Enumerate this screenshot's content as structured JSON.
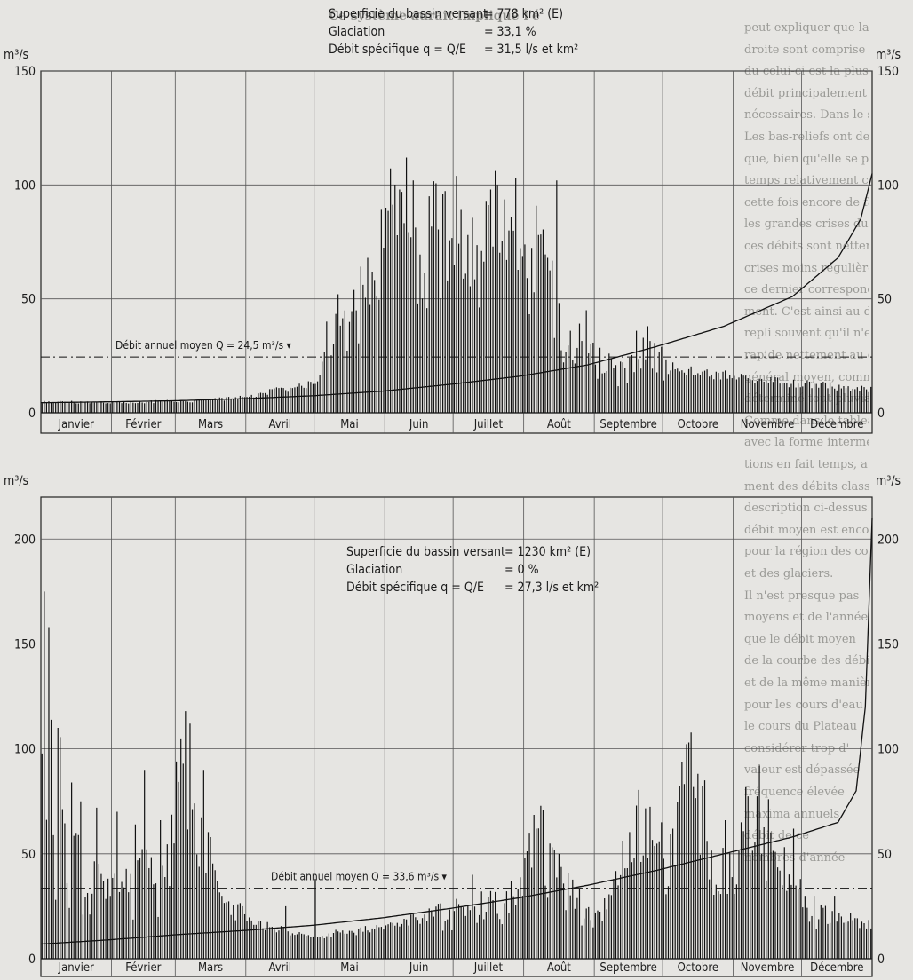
{
  "page": {
    "heading_fragment": "Ce système aurait impliqué l'é",
    "right_margin_lines": [
      "peut expliquer que la ba",
      "droite sont comprise entre l",
      "du celui-ci est la plus grand",
      "débit principalement d'été",
      "nécessaires. Dans le secteur du",
      "Les bas-reliefs ont des moyens",
      "que, bien qu'elle se produise",
      "temps relativement court. Ils",
      "cette fois encore de faire de",
      "les grandes crises du Plateau",
      "ces débits sont nettement plu",
      "crises moins régulièrement",
      "ce dernier correspond claire",
      "ment. C'est ainsi au débit",
      "repli souvent qu'il n'est pas",
      "rapide nettement au débit",
      "général moyen, comme l'indi",
      "déterminé tout pluvial.",
      "Comme dans le tableau",
      "avec la forme intermédiaire",
      "tions en fait temps, a",
      "ment des débits classés et",
      "description ci-dessus. La",
      "débit moyen est encore",
      "pour la région des cours",
      "et des glaciers.",
      "Il n'est presque pas",
      "moyens et de l'année du",
      "que le débit moyen",
      "de la courbe des débits",
      "et de la même manière",
      "pour les cours d'eau",
      "le cours du Plateau",
      "considérer trop d'",
      "valeur est dépassée",
      "fréquence élevée",
      "maxima annuels",
      "débit de ce",
      "nombres d'année"
    ]
  },
  "chart_data": [
    {
      "type": "bar",
      "id": "glacial-regime",
      "info": [
        {
          "label": "Superficie du bassin versant",
          "value": "= 778 km² (E)"
        },
        {
          "label": "Glaciation",
          "value": "= 33,1 %"
        },
        {
          "label": "Débit spécifique  q = Q/E",
          "value": "= 31,5 l/s et km²"
        }
      ],
      "unit": "m³/s",
      "ylim": [
        0,
        150
      ],
      "yticks": [
        0,
        50,
        100,
        150
      ],
      "y_left_ticks": [
        "0",
        "50",
        "100",
        "150"
      ],
      "y_right_ticks": [
        "0",
        "50",
        "100",
        "150"
      ],
      "months": [
        "Janvier",
        "Février",
        "Mars",
        "Avril",
        "Mai",
        "Juin",
        "Juillet",
        "Août",
        "Septembre",
        "Octobre",
        "Novembre",
        "Décembre"
      ],
      "mean_flow": 24.5,
      "mean_flow_label": "Débit annuel moyen  Q = 24,5 m³/s",
      "daily_envelope": [
        [
          1,
          4.5
        ],
        [
          20,
          4.6
        ],
        [
          40,
          4.7
        ],
        [
          60,
          5
        ],
        [
          75,
          5.5
        ],
        [
          91,
          7
        ],
        [
          100,
          9
        ],
        [
          110,
          11
        ],
        [
          121,
          13
        ],
        [
          126,
          25
        ],
        [
          131,
          38
        ],
        [
          136,
          42
        ],
        [
          141,
          55
        ],
        [
          146,
          70
        ],
        [
          151,
          85
        ],
        [
          156,
          90
        ],
        [
          160,
          112
        ],
        [
          165,
          80
        ],
        [
          171,
          82
        ],
        [
          176,
          85
        ],
        [
          182,
          88
        ],
        [
          188,
          75
        ],
        [
          194,
          78
        ],
        [
          200,
          85
        ],
        [
          206,
          72
        ],
        [
          212,
          60
        ],
        [
          218,
          73
        ],
        [
          224,
          58
        ],
        [
          230,
          40
        ],
        [
          235,
          32
        ],
        [
          240,
          38
        ],
        [
          244,
          24
        ],
        [
          252,
          20
        ],
        [
          258,
          22
        ],
        [
          262,
          25
        ],
        [
          268,
          32
        ],
        [
          274,
          22
        ],
        [
          285,
          18
        ],
        [
          300,
          17
        ],
        [
          315,
          15
        ],
        [
          330,
          13
        ],
        [
          345,
          12
        ],
        [
          365,
          10
        ]
      ],
      "daily_peaks": [
        [
          126,
          40
        ],
        [
          131,
          52
        ],
        [
          144,
          68
        ],
        [
          152,
          90
        ],
        [
          158,
          98
        ],
        [
          161,
          112
        ],
        [
          164,
          102
        ],
        [
          171,
          95
        ],
        [
          177,
          96
        ],
        [
          183,
          104
        ],
        [
          188,
          78
        ],
        [
          196,
          93
        ],
        [
          201,
          100
        ],
        [
          206,
          80
        ],
        [
          209,
          103
        ],
        [
          219,
          78
        ],
        [
          223,
          68
        ],
        [
          227,
          102
        ],
        [
          233,
          36
        ],
        [
          240,
          45
        ],
        [
          262,
          36
        ],
        [
          267,
          38
        ]
      ],
      "flow_duration_curve": [
        [
          0,
          4.4
        ],
        [
          30,
          4.8
        ],
        [
          60,
          5.3
        ],
        [
          90,
          6.2
        ],
        [
          120,
          7.5
        ],
        [
          150,
          9.5
        ],
        [
          180,
          12.5
        ],
        [
          210,
          16
        ],
        [
          240,
          21
        ],
        [
          270,
          29
        ],
        [
          300,
          38
        ],
        [
          330,
          51
        ],
        [
          350,
          68
        ],
        [
          360,
          85
        ],
        [
          365,
          105
        ]
      ]
    },
    {
      "type": "bar",
      "id": "plateau-regime",
      "info": [
        {
          "label": "Superficie du bassin versant",
          "value": "= 1230 km² (E)"
        },
        {
          "label": "Glaciation",
          "value": "= 0 %"
        },
        {
          "label": "Débit spécifique  q = Q/E",
          "value": "= 27,3 l/s et km²"
        }
      ],
      "unit": "m³/s",
      "ylim": [
        0,
        220
      ],
      "yticks": [
        0,
        50,
        100,
        150,
        200
      ],
      "y_left_ticks": [
        "0",
        "50",
        "100",
        "150",
        "200"
      ],
      "y_right_ticks": [
        "0",
        "50",
        "100",
        "150",
        "200"
      ],
      "months": [
        "Janvier",
        "Février",
        "Mars",
        "Avril",
        "Mai",
        "Juin",
        "Juillet",
        "Août",
        "Septembre",
        "Octobre",
        "Novembre",
        "Décembre"
      ],
      "mean_flow": 33.6,
      "mean_flow_label": "Débit annuel moyen  Q = 33,6 m³/s",
      "daily_envelope": [
        [
          1,
          150
        ],
        [
          3,
          60
        ],
        [
          5,
          110
        ],
        [
          7,
          40
        ],
        [
          9,
          85
        ],
        [
          12,
          35
        ],
        [
          16,
          55
        ],
        [
          20,
          30
        ],
        [
          25,
          45
        ],
        [
          31,
          28
        ],
        [
          36,
          50
        ],
        [
          41,
          30
        ],
        [
          46,
          60
        ],
        [
          52,
          35
        ],
        [
          57,
          58
        ],
        [
          61,
          75
        ],
        [
          64,
          115
        ],
        [
          67,
          80
        ],
        [
          70,
          52
        ],
        [
          74,
          65
        ],
        [
          78,
          40
        ],
        [
          84,
          28
        ],
        [
          91,
          18
        ],
        [
          98,
          16
        ],
        [
          105,
          14
        ],
        [
          112,
          12
        ],
        [
          121,
          10
        ],
        [
          130,
          12
        ],
        [
          140,
          13
        ],
        [
          150,
          15
        ],
        [
          160,
          18
        ],
        [
          170,
          20
        ],
        [
          180,
          22
        ],
        [
          190,
          25
        ],
        [
          200,
          28
        ],
        [
          210,
          32
        ],
        [
          216,
          55
        ],
        [
          220,
          60
        ],
        [
          225,
          45
        ],
        [
          230,
          38
        ],
        [
          236,
          30
        ],
        [
          241,
          22
        ],
        [
          246,
          30
        ],
        [
          252,
          40
        ],
        [
          258,
          50
        ],
        [
          263,
          65
        ],
        [
          268,
          62
        ],
        [
          272,
          45
        ],
        [
          277,
          55
        ],
        [
          282,
          82
        ],
        [
          286,
          95
        ],
        [
          290,
          75
        ],
        [
          294,
          50
        ],
        [
          298,
          42
        ],
        [
          303,
          52
        ],
        [
          307,
          60
        ],
        [
          312,
          72
        ],
        [
          317,
          65
        ],
        [
          321,
          55
        ],
        [
          325,
          48
        ],
        [
          329,
          40
        ],
        [
          335,
          30
        ],
        [
          341,
          25
        ],
        [
          348,
          20
        ],
        [
          355,
          18
        ],
        [
          365,
          16
        ]
      ],
      "daily_peaks": [
        [
          2,
          175
        ],
        [
          4,
          158
        ],
        [
          8,
          110
        ],
        [
          14,
          84
        ],
        [
          18,
          75
        ],
        [
          25,
          72
        ],
        [
          34,
          70
        ],
        [
          42,
          64
        ],
        [
          46,
          90
        ],
        [
          53,
          66
        ],
        [
          60,
          94
        ],
        [
          62,
          105
        ],
        [
          64,
          118
        ],
        [
          66,
          112
        ],
        [
          68,
          74
        ],
        [
          72,
          90
        ],
        [
          108,
          25
        ],
        [
          121,
          38
        ],
        [
          190,
          40
        ],
        [
          212,
          30
        ],
        [
          215,
          60
        ],
        [
          218,
          62
        ],
        [
          228,
          50
        ],
        [
          262,
          73
        ],
        [
          273,
          65
        ],
        [
          278,
          62
        ],
        [
          285,
          103
        ],
        [
          292,
          85
        ],
        [
          301,
          66
        ],
        [
          308,
          65
        ],
        [
          316,
          92
        ],
        [
          320,
          76
        ],
        [
          325,
          42
        ],
        [
          331,
          62
        ],
        [
          334,
          38
        ],
        [
          340,
          30
        ],
        [
          349,
          30
        ],
        [
          356,
          22
        ]
      ],
      "flow_duration_curve": [
        [
          0,
          7
        ],
        [
          30,
          9
        ],
        [
          60,
          11.5
        ],
        [
          90,
          13.5
        ],
        [
          120,
          16
        ],
        [
          150,
          19.5
        ],
        [
          180,
          24
        ],
        [
          210,
          29
        ],
        [
          240,
          35
        ],
        [
          270,
          42
        ],
        [
          300,
          50
        ],
        [
          330,
          58
        ],
        [
          350,
          65
        ],
        [
          358,
          80
        ],
        [
          362,
          120
        ],
        [
          365,
          210
        ]
      ]
    }
  ]
}
